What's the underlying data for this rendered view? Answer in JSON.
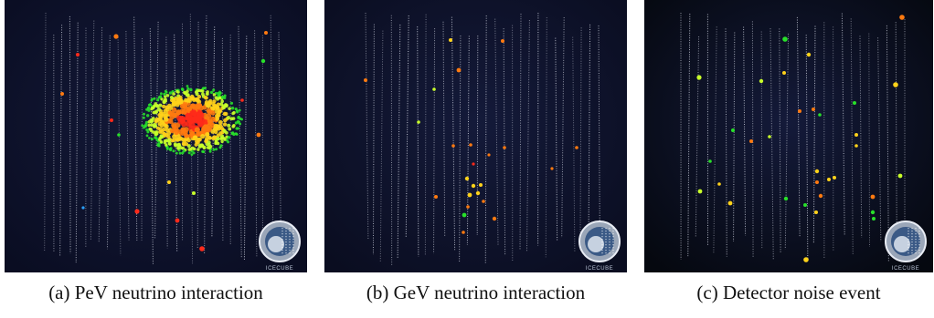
{
  "panels": [
    {
      "caption": "(a) PeV neutrino interaction",
      "logo_text": "IceCube",
      "background": "#0a0d22"
    },
    {
      "caption": "(b) GeV neutrino interaction",
      "logo_text": "IceCube",
      "background": "#0a0d20"
    },
    {
      "caption": "(c) Detector noise event",
      "logo_text": "IceCube",
      "background": "#05080f"
    }
  ],
  "colors": {
    "strings": "#cfd3e0",
    "hits": [
      "#ff2a1a",
      "#ff7a10",
      "#ffd21a",
      "#c8ff2a",
      "#28e02a",
      "#2aa0ff"
    ]
  }
}
